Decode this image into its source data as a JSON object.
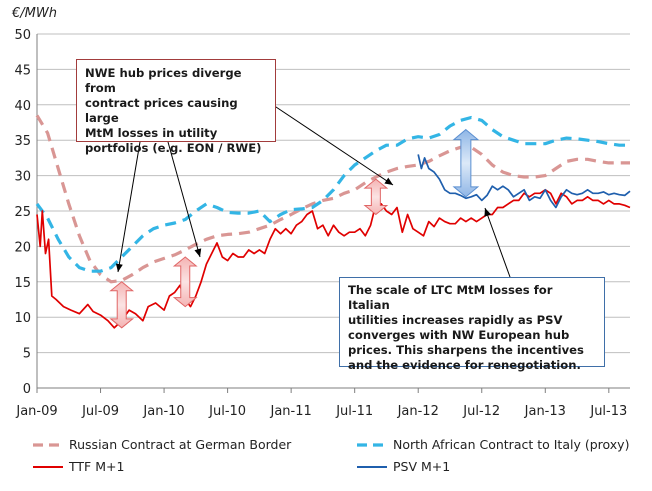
{
  "chart_data": {
    "type": "line",
    "title": "",
    "ylabel": "€/MWh",
    "xlabel": "",
    "ylim": [
      0,
      50
    ],
    "yticks": [
      0,
      5,
      10,
      15,
      20,
      25,
      30,
      35,
      40,
      45,
      50
    ],
    "xlim": [
      0,
      56
    ],
    "xticks": [
      {
        "label": "Jan-09",
        "month": 0
      },
      {
        "label": "Jul-09",
        "month": 6
      },
      {
        "label": "Jan-10",
        "month": 12
      },
      {
        "label": "Jul-10",
        "month": 18
      },
      {
        "label": "Jan-11",
        "month": 24
      },
      {
        "label": "Jul-11",
        "month": 30
      },
      {
        "label": "Jan-12",
        "month": 36
      },
      {
        "label": "Jul-12",
        "month": 42
      },
      {
        "label": "Jan-13",
        "month": 48
      },
      {
        "label": "Jul-13",
        "month": 54
      }
    ],
    "grid": true,
    "series": [
      {
        "name": "Russian Contract at German Border",
        "color": "#d99694",
        "style": "dashed",
        "points": [
          [
            0,
            38.5
          ],
          [
            1,
            36
          ],
          [
            2,
            31
          ],
          [
            3,
            26
          ],
          [
            4,
            21.5
          ],
          [
            5,
            18
          ],
          [
            6,
            16
          ],
          [
            7,
            15
          ],
          [
            8,
            15.2
          ],
          [
            9,
            16
          ],
          [
            10,
            17
          ],
          [
            11,
            17.8
          ],
          [
            12,
            18.3
          ],
          [
            13,
            18.8
          ],
          [
            14,
            19.5
          ],
          [
            15,
            20.3
          ],
          [
            16,
            21
          ],
          [
            17,
            21.5
          ],
          [
            18,
            21.7
          ],
          [
            19,
            21.8
          ],
          [
            20,
            22
          ],
          [
            21,
            22.5
          ],
          [
            22,
            23
          ],
          [
            23,
            23.8
          ],
          [
            24,
            24.5
          ],
          [
            25,
            25.3
          ],
          [
            26,
            26
          ],
          [
            27,
            26.5
          ],
          [
            28,
            26.8
          ],
          [
            29,
            27.5
          ],
          [
            30,
            28
          ],
          [
            31,
            29
          ],
          [
            32,
            29.8
          ],
          [
            33,
            30.5
          ],
          [
            34,
            31
          ],
          [
            35,
            31.3
          ],
          [
            36,
            31.5
          ],
          [
            37,
            32
          ],
          [
            38,
            32.8
          ],
          [
            39,
            33.5
          ],
          [
            40,
            34
          ],
          [
            41,
            34
          ],
          [
            42,
            33
          ],
          [
            43,
            31.5
          ],
          [
            44,
            30.5
          ],
          [
            45,
            30
          ],
          [
            46,
            29.8
          ],
          [
            47,
            29.8
          ],
          [
            48,
            30
          ],
          [
            49,
            31
          ],
          [
            50,
            32
          ],
          [
            51,
            32.3
          ],
          [
            52,
            32.3
          ],
          [
            53,
            32
          ],
          [
            54,
            31.8
          ],
          [
            55,
            31.8
          ],
          [
            56,
            31.8
          ]
        ]
      },
      {
        "name": "North African Contract to Italy (proxy)",
        "color": "#33b5e5",
        "style": "dashed",
        "points": [
          [
            0,
            26
          ],
          [
            1,
            24
          ],
          [
            2,
            21
          ],
          [
            3,
            18.5
          ],
          [
            4,
            17
          ],
          [
            5,
            16.5
          ],
          [
            6,
            16.5
          ],
          [
            7,
            17
          ],
          [
            8,
            18.5
          ],
          [
            9,
            20
          ],
          [
            10,
            21.5
          ],
          [
            11,
            22.5
          ],
          [
            12,
            23
          ],
          [
            13,
            23.3
          ],
          [
            14,
            23.8
          ],
          [
            15,
            25
          ],
          [
            16,
            26
          ],
          [
            17,
            25.5
          ],
          [
            18,
            24.8
          ],
          [
            19,
            24.7
          ],
          [
            20,
            24.7
          ],
          [
            21,
            25
          ],
          [
            22,
            23.5
          ],
          [
            23,
            24.5
          ],
          [
            24,
            25.2
          ],
          [
            25,
            25.3
          ],
          [
            26,
            25.5
          ],
          [
            27,
            26.5
          ],
          [
            28,
            28
          ],
          [
            29,
            30
          ],
          [
            30,
            31.5
          ],
          [
            31,
            32.5
          ],
          [
            32,
            33.5
          ],
          [
            33,
            34.3
          ],
          [
            34,
            34.3
          ],
          [
            35,
            35.2
          ],
          [
            36,
            35.5
          ],
          [
            37,
            35.3
          ],
          [
            38,
            35.8
          ],
          [
            39,
            37
          ],
          [
            40,
            37.8
          ],
          [
            41,
            38.2
          ],
          [
            42,
            37.8
          ],
          [
            43,
            36.5
          ],
          [
            44,
            35.5
          ],
          [
            45,
            35
          ],
          [
            46,
            34.5
          ],
          [
            47,
            34.5
          ],
          [
            48,
            34.5
          ],
          [
            49,
            35
          ],
          [
            50,
            35.3
          ],
          [
            51,
            35.2
          ],
          [
            52,
            35
          ],
          [
            53,
            34.8
          ],
          [
            54,
            34.5
          ],
          [
            55,
            34.3
          ],
          [
            56,
            34.3
          ]
        ]
      },
      {
        "name": "TTF M+1",
        "color": "#e00000",
        "style": "solid",
        "points": [
          [
            0,
            24.5
          ],
          [
            0.3,
            20
          ],
          [
            0.5,
            25
          ],
          [
            0.8,
            19
          ],
          [
            1.1,
            21
          ],
          [
            1.4,
            13
          ],
          [
            1.8,
            12.5
          ],
          [
            2.5,
            11.5
          ],
          [
            3.2,
            11
          ],
          [
            4,
            10.5
          ],
          [
            4.8,
            11.8
          ],
          [
            5.3,
            10.8
          ],
          [
            6,
            10.3
          ],
          [
            6.7,
            9.5
          ],
          [
            7.3,
            8.5
          ],
          [
            8,
            9.5
          ],
          [
            8.7,
            11
          ],
          [
            9.3,
            10.5
          ],
          [
            10,
            9.5
          ],
          [
            10.5,
            11.5
          ],
          [
            11.2,
            12
          ],
          [
            12,
            11
          ],
          [
            12.5,
            13
          ],
          [
            13,
            13.5
          ],
          [
            13.5,
            14.5
          ],
          [
            14,
            12.5
          ],
          [
            14.5,
            11.5
          ],
          [
            15,
            13
          ],
          [
            15.5,
            15
          ],
          [
            16,
            17.5
          ],
          [
            16.5,
            19
          ],
          [
            17,
            20.5
          ],
          [
            17.5,
            18.5
          ],
          [
            18,
            18
          ],
          [
            18.5,
            19
          ],
          [
            19,
            18.5
          ],
          [
            19.5,
            18.5
          ],
          [
            20,
            19.5
          ],
          [
            20.5,
            19
          ],
          [
            21,
            19.5
          ],
          [
            21.5,
            19
          ],
          [
            22,
            21
          ],
          [
            22.5,
            22.5
          ],
          [
            23,
            21.8
          ],
          [
            23.5,
            22.5
          ],
          [
            24,
            21.8
          ],
          [
            24.5,
            23
          ],
          [
            25,
            23.5
          ],
          [
            25.5,
            24.5
          ],
          [
            26,
            25
          ],
          [
            26.5,
            22.5
          ],
          [
            27,
            23
          ],
          [
            27.5,
            21.5
          ],
          [
            28,
            23
          ],
          [
            28.5,
            22
          ],
          [
            29,
            21.5
          ],
          [
            29.5,
            22
          ],
          [
            30,
            22
          ],
          [
            30.5,
            22.5
          ],
          [
            31,
            21.5
          ],
          [
            31.5,
            23
          ],
          [
            32,
            26
          ],
          [
            32.5,
            26
          ],
          [
            33,
            25
          ],
          [
            33.5,
            24.5
          ],
          [
            34,
            25.5
          ],
          [
            34.5,
            22
          ],
          [
            35,
            24.5
          ],
          [
            35.5,
            22.5
          ],
          [
            36,
            22
          ],
          [
            36.5,
            21.5
          ],
          [
            37,
            23.5
          ],
          [
            37.5,
            22.8
          ],
          [
            38,
            24
          ],
          [
            38.5,
            23.5
          ],
          [
            39,
            23.2
          ],
          [
            39.5,
            23.2
          ],
          [
            40,
            24
          ],
          [
            40.5,
            23.5
          ],
          [
            41,
            24
          ],
          [
            41.5,
            23.5
          ],
          [
            42,
            24
          ],
          [
            42.5,
            24.5
          ],
          [
            43,
            24.5
          ],
          [
            43.5,
            25.5
          ],
          [
            44,
            25.5
          ],
          [
            44.5,
            26
          ],
          [
            45,
            26.5
          ],
          [
            45.5,
            26.5
          ],
          [
            46,
            27.5
          ],
          [
            46.5,
            27
          ],
          [
            47,
            27.5
          ],
          [
            47.5,
            27.5
          ],
          [
            48,
            28
          ],
          [
            48.5,
            27.5
          ],
          [
            49,
            26
          ],
          [
            49.5,
            27.5
          ],
          [
            50,
            27
          ],
          [
            50.5,
            26
          ],
          [
            51,
            26.5
          ],
          [
            51.5,
            26.5
          ],
          [
            52,
            27
          ],
          [
            52.5,
            26.5
          ],
          [
            53,
            26.5
          ],
          [
            53.5,
            26
          ],
          [
            54,
            26.5
          ],
          [
            54.5,
            26
          ],
          [
            55,
            26
          ],
          [
            55.5,
            25.8
          ],
          [
            56,
            25.5
          ]
        ]
      },
      {
        "name": "PSV M+1",
        "color": "#1f5fad",
        "style": "solid",
        "points": [
          [
            36,
            33
          ],
          [
            36.3,
            31
          ],
          [
            36.6,
            32.5
          ],
          [
            37,
            31
          ],
          [
            37.5,
            30.5
          ],
          [
            38,
            29.5
          ],
          [
            38.5,
            28
          ],
          [
            39,
            27.5
          ],
          [
            39.5,
            27.5
          ],
          [
            40,
            27.2
          ],
          [
            40.5,
            26.8
          ],
          [
            41,
            27
          ],
          [
            41.5,
            27.3
          ],
          [
            42,
            26.5
          ],
          [
            42.5,
            27.2
          ],
          [
            43,
            28.5
          ],
          [
            43.5,
            28
          ],
          [
            44,
            28.5
          ],
          [
            44.5,
            28
          ],
          [
            45,
            27
          ],
          [
            45.5,
            27.5
          ],
          [
            46,
            28
          ],
          [
            46.5,
            26.5
          ],
          [
            47,
            27
          ],
          [
            47.5,
            26.8
          ],
          [
            48,
            28
          ],
          [
            48.5,
            26.5
          ],
          [
            49,
            25.5
          ],
          [
            49.5,
            27
          ],
          [
            50,
            28
          ],
          [
            50.5,
            27.5
          ],
          [
            51,
            27.3
          ],
          [
            51.5,
            27.5
          ],
          [
            52,
            28
          ],
          [
            52.5,
            27.5
          ],
          [
            53,
            27.5
          ],
          [
            53.5,
            27.7
          ],
          [
            54,
            27.3
          ],
          [
            54.5,
            27.5
          ],
          [
            55,
            27.3
          ],
          [
            55.5,
            27.2
          ],
          [
            56,
            27.8
          ]
        ]
      }
    ],
    "arrows": [
      {
        "month": 8,
        "low": 8.5,
        "high": 15
      },
      {
        "month": 14,
        "low": 11.5,
        "high": 18.5
      },
      {
        "month": 32,
        "low": 24.5,
        "high": 29.5
      },
      {
        "month": 40.5,
        "low": 27,
        "high": 36.5
      }
    ],
    "annotations": [
      {
        "lines": [
          "NWE hub prices diverge from",
          "contract prices causing large",
          "MtM losses in utility",
          "portfolios (e.g. EON  / RWE)"
        ]
      },
      {
        "lines": [
          "The scale of LTC MtM losses for Italian",
          "utilities increases rapidly as PSV",
          "converges with NW European hub",
          "prices.  This sharpens the incentives",
          "and the evidence for renegotiation."
        ]
      }
    ]
  }
}
